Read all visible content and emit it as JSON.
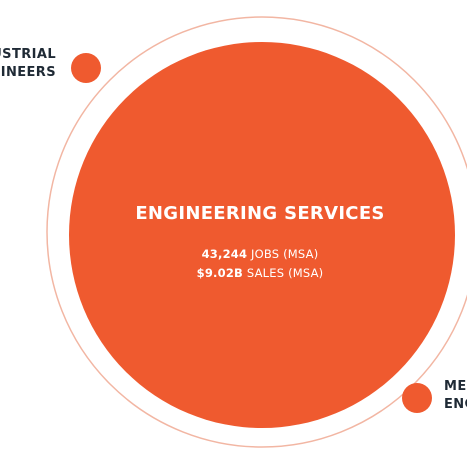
{
  "center": {
    "title": "ENGINEERING SERVICES",
    "jobs_value": "43,244",
    "jobs_unit": "JOBS (MSA)",
    "sales_value": "$9.02B",
    "sales_unit": "SALES (MSA)"
  },
  "nodes": {
    "left_line1": "USTRIAL",
    "left_line2": "INEERS",
    "right_line1": "ME",
    "right_line2": "ENG"
  },
  "colors": {
    "accent": "#EF5A2F",
    "ring": "#F2B6A3",
    "label_text": "#1F2A35",
    "background": "#FFFFFF"
  }
}
